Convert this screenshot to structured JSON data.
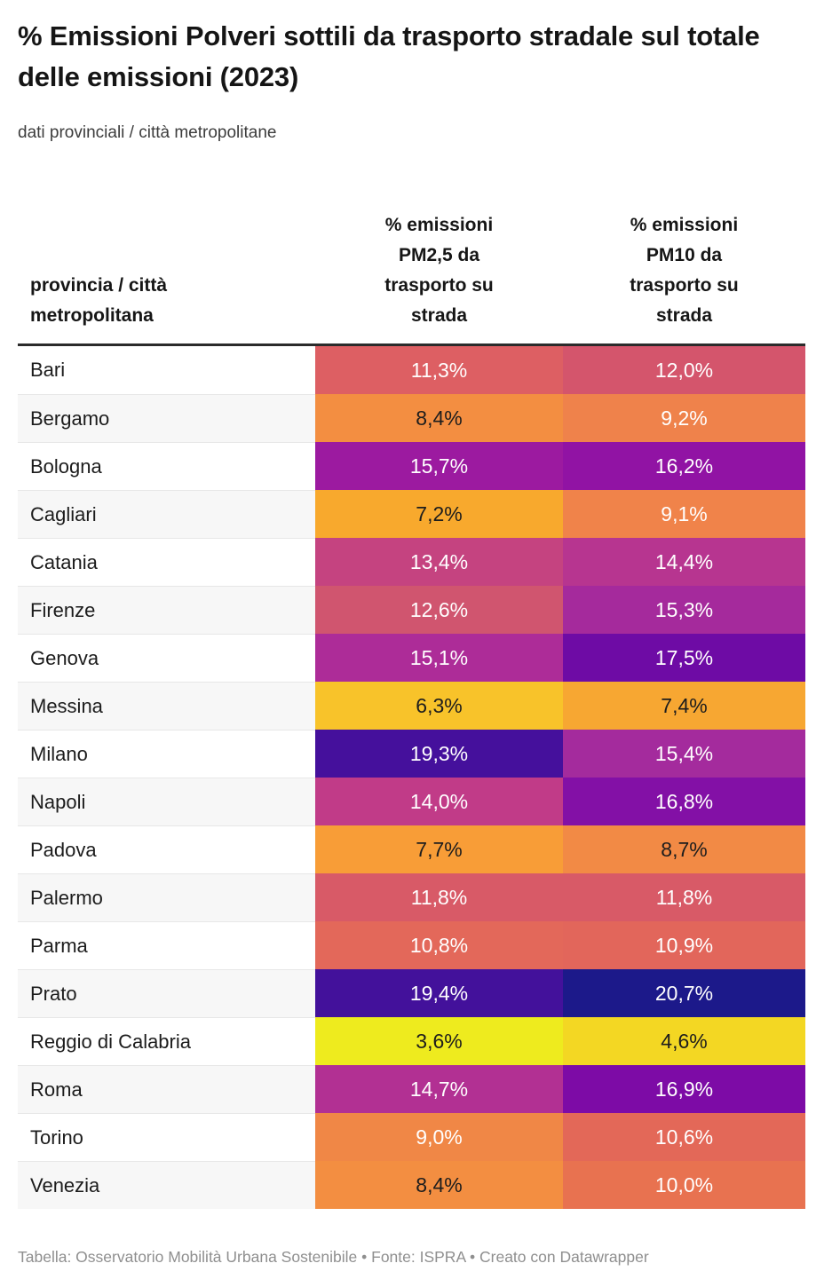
{
  "chart_data": {
    "type": "table",
    "title": "% Emissioni Polveri sottili da trasporto stradale sul totale delle emissioni (2023)",
    "subtitle": "dati provinciali / città metropolitane",
    "columns": {
      "name": "provincia / città metropolitana",
      "pm25": "% emissioni PM2,5 da trasporto su strada",
      "pm10": "% emissioni PM10 da trasporto su strada"
    },
    "color_scale": {
      "palette": "plasma-reversed",
      "domain_min": 3.6,
      "domain_max": 20.7
    },
    "rows": [
      {
        "name": "Bari",
        "pm25": {
          "value": 11.3,
          "label": "11,3%",
          "bg": "#dd5f63",
          "fg": "#ffffff"
        },
        "pm10": {
          "value": 12.0,
          "label": "12,0%",
          "bg": "#d4556c",
          "fg": "#ffffff"
        }
      },
      {
        "name": "Bergamo",
        "pm25": {
          "value": 8.4,
          "label": "8,4%",
          "bg": "#f38e41",
          "fg": "#1d1d1d"
        },
        "pm10": {
          "value": 9.2,
          "label": "9,2%",
          "bg": "#ef824b",
          "fg": "#ffffff"
        }
      },
      {
        "name": "Bologna",
        "pm25": {
          "value": 15.7,
          "label": "15,7%",
          "bg": "#9c1aa0",
          "fg": "#ffffff"
        },
        "pm10": {
          "value": 16.2,
          "label": "16,2%",
          "bg": "#9113a4",
          "fg": "#ffffff"
        }
      },
      {
        "name": "Cagliari",
        "pm25": {
          "value": 7.2,
          "label": "7,2%",
          "bg": "#f8a92d",
          "fg": "#1d1d1d"
        },
        "pm10": {
          "value": 9.1,
          "label": "9,1%",
          "bg": "#f0834a",
          "fg": "#ffffff"
        }
      },
      {
        "name": "Catania",
        "pm25": {
          "value": 13.4,
          "label": "13,4%",
          "bg": "#c54380",
          "fg": "#ffffff"
        },
        "pm10": {
          "value": 14.4,
          "label": "14,4%",
          "bg": "#b73590",
          "fg": "#ffffff"
        }
      },
      {
        "name": "Firenze",
        "pm25": {
          "value": 12.6,
          "label": "12,6%",
          "bg": "#d0556f",
          "fg": "#ffffff"
        },
        "pm10": {
          "value": 15.3,
          "label": "15,3%",
          "bg": "#a52a9c",
          "fg": "#ffffff"
        }
      },
      {
        "name": "Genova",
        "pm25": {
          "value": 15.1,
          "label": "15,1%",
          "bg": "#ad2c98",
          "fg": "#ffffff"
        },
        "pm10": {
          "value": 17.5,
          "label": "17,5%",
          "bg": "#6e0ba5",
          "fg": "#ffffff"
        }
      },
      {
        "name": "Messina",
        "pm25": {
          "value": 6.3,
          "label": "6,3%",
          "bg": "#f8c32a",
          "fg": "#1d1d1d"
        },
        "pm10": {
          "value": 7.4,
          "label": "7,4%",
          "bg": "#f7a732",
          "fg": "#1d1d1d"
        }
      },
      {
        "name": "Milano",
        "pm25": {
          "value": 19.3,
          "label": "19,3%",
          "bg": "#45109c",
          "fg": "#ffffff"
        },
        "pm10": {
          "value": 15.4,
          "label": "15,4%",
          "bg": "#a42b9d",
          "fg": "#ffffff"
        }
      },
      {
        "name": "Napoli",
        "pm25": {
          "value": 14.0,
          "label": "14,0%",
          "bg": "#c13b88",
          "fg": "#ffffff"
        },
        "pm10": {
          "value": 16.8,
          "label": "16,8%",
          "bg": "#8310a6",
          "fg": "#ffffff"
        }
      },
      {
        "name": "Padova",
        "pm25": {
          "value": 7.7,
          "label": "7,7%",
          "bg": "#f89d37",
          "fg": "#1d1d1d"
        },
        "pm10": {
          "value": 8.7,
          "label": "8,7%",
          "bg": "#f28a45",
          "fg": "#1d1d1d"
        }
      },
      {
        "name": "Palermo",
        "pm25": {
          "value": 11.8,
          "label": "11,8%",
          "bg": "#d85a67",
          "fg": "#ffffff"
        },
        "pm10": {
          "value": 11.8,
          "label": "11,8%",
          "bg": "#d85a67",
          "fg": "#ffffff"
        }
      },
      {
        "name": "Parma",
        "pm25": {
          "value": 10.8,
          "label": "10,8%",
          "bg": "#e3685a",
          "fg": "#ffffff"
        },
        "pm10": {
          "value": 10.9,
          "label": "10,9%",
          "bg": "#e2665b",
          "fg": "#ffffff"
        }
      },
      {
        "name": "Prato",
        "pm25": {
          "value": 19.4,
          "label": "19,4%",
          "bg": "#43119b",
          "fg": "#ffffff"
        },
        "pm10": {
          "value": 20.7,
          "label": "20,7%",
          "bg": "#1c198a",
          "fg": "#ffffff"
        }
      },
      {
        "name": "Reggio di Calabria",
        "pm25": {
          "value": 3.6,
          "label": "3,6%",
          "bg": "#eeeb1e",
          "fg": "#1d1d1d"
        },
        "pm10": {
          "value": 4.6,
          "label": "4,6%",
          "bg": "#f3d723",
          "fg": "#1d1d1d"
        }
      },
      {
        "name": "Roma",
        "pm25": {
          "value": 14.7,
          "label": "14,7%",
          "bg": "#b23093",
          "fg": "#ffffff"
        },
        "pm10": {
          "value": 16.9,
          "label": "16,9%",
          "bg": "#7d0ba6",
          "fg": "#ffffff"
        }
      },
      {
        "name": "Torino",
        "pm25": {
          "value": 9.0,
          "label": "9,0%",
          "bg": "#f08746",
          "fg": "#ffffff"
        },
        "pm10": {
          "value": 10.6,
          "label": "10,6%",
          "bg": "#e36858",
          "fg": "#ffffff"
        }
      },
      {
        "name": "Venezia",
        "pm25": {
          "value": 8.4,
          "label": "8,4%",
          "bg": "#f38e41",
          "fg": "#1d1d1d"
        },
        "pm10": {
          "value": 10.0,
          "label": "10,0%",
          "bg": "#e87250",
          "fg": "#ffffff"
        }
      }
    ]
  },
  "footer": "Tabella: Osservatorio Mobilità Urbana Sostenibile • Fonte: ISPRA • Creato con Datawrapper",
  "colors": {
    "header_rule": "#2b2b2b",
    "row_alt_bg": "#f7f7f7",
    "row_divider": "#e7e7e7",
    "title_text": "#151515",
    "subtitle_text": "#3c3c3c",
    "footer_text": "#8f8f8f",
    "value_text_light": "#ffffff",
    "value_text_dark": "#1d1d1d"
  }
}
